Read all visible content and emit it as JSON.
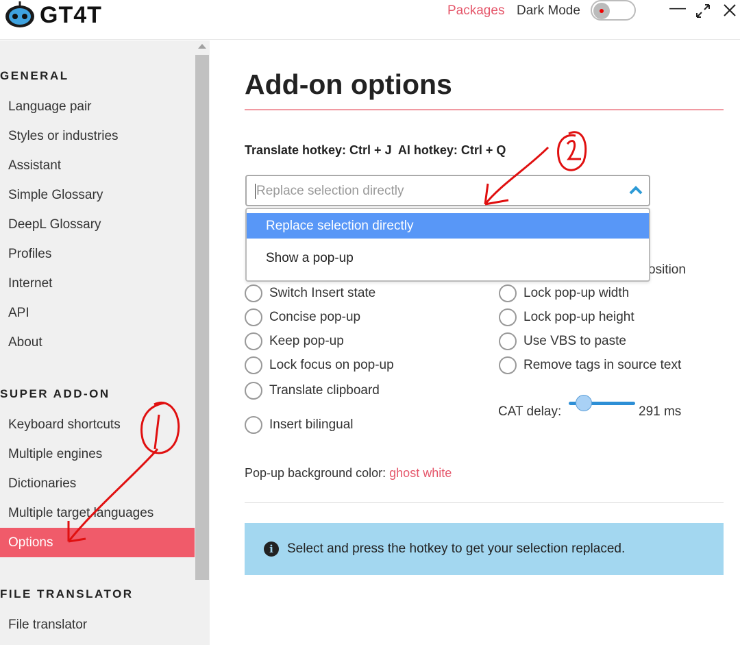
{
  "app": {
    "title": "GT4T",
    "packages": "Packages",
    "dark_mode": "Dark Mode",
    "dark_mode_on": false
  },
  "sidebar": {
    "sections": [
      {
        "title": "GENERAL",
        "items": [
          "Language pair",
          "Styles or industries",
          "Assistant",
          "Simple Glossary",
          "DeepL Glossary",
          "Profiles",
          "Internet",
          "API",
          "About"
        ]
      },
      {
        "title": "SUPER ADD-ON",
        "items": [
          "Keyboard shortcuts",
          "Multiple engines",
          "Dictionaries",
          "Multiple target languages",
          "Options"
        ]
      },
      {
        "title": "FILE TRANSLATOR",
        "items": [
          "File translator"
        ]
      }
    ],
    "active": "Options"
  },
  "main": {
    "title": "Add-on options",
    "hotkeys": "Translate hotkey: Ctrl + J  AI hotkey: Ctrl + Q",
    "select": {
      "value": "Replace selection directly",
      "options": [
        "Replace selection directly",
        "Show a pop-up"
      ],
      "highlighted": "Replace selection directly"
    },
    "partial_label": "osition",
    "left_options": [
      "Switch Insert state",
      "Concise pop-up",
      "Keep pop-up",
      "Lock focus on pop-up",
      "Translate clipboard",
      "Insert bilingual"
    ],
    "right_options": [
      "Lock pop-up width",
      "Lock pop-up height",
      "Use VBS to paste",
      "Remove tags in source text"
    ],
    "cat_delay": {
      "label": "CAT delay:",
      "value": "291 ms",
      "ms": 291
    },
    "bg_color": {
      "label": "Pop-up background color:",
      "value": "ghost white"
    },
    "info": "Select and press the hotkey to get your selection replaced."
  },
  "colors": {
    "accent": "#f05b6a",
    "highlight": "#5897f7",
    "info": "#a3d7f0",
    "annotation": "#e01010"
  }
}
